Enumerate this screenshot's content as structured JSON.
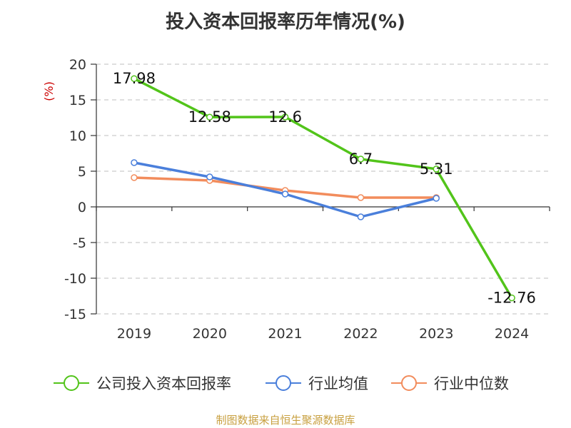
{
  "chart_data": {
    "type": "line",
    "title": "投入资本回报率历年情况(%)",
    "ylabel": "(%)",
    "xlabel": "",
    "categories": [
      "2019",
      "2020",
      "2021",
      "2022",
      "2023",
      "2024"
    ],
    "ylim": [
      -15,
      20
    ],
    "yticks": [
      20,
      15,
      10,
      5,
      0,
      -5,
      -10,
      -15
    ],
    "grid": true,
    "legend_position": "bottom",
    "series": [
      {
        "name": "公司投入资本回报率",
        "color": "#52c41a",
        "values": [
          17.98,
          12.58,
          12.6,
          6.7,
          5.31,
          -12.76
        ],
        "labels": [
          "17.98",
          "12.58",
          "12.6",
          "6.7",
          "5.31",
          "-12.76"
        ]
      },
      {
        "name": "行业均值",
        "color": "#4a7fdb",
        "values": [
          6.2,
          4.2,
          1.8,
          -1.4,
          1.2,
          null
        ],
        "labels": []
      },
      {
        "name": "行业中位数",
        "color": "#f28c5c",
        "values": [
          4.1,
          3.7,
          2.3,
          1.3,
          1.3,
          null
        ],
        "labels": []
      }
    ]
  },
  "colors": {
    "axis": "#333333",
    "grid": "#cccccc",
    "ylabel": "#cc0000",
    "source": "#c8a040"
  },
  "source_note": "制图数据来自恒生聚源数据库"
}
